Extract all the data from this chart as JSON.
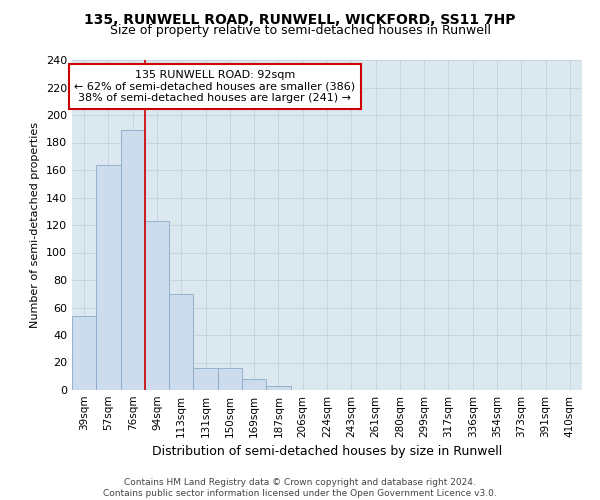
{
  "title": "135, RUNWELL ROAD, RUNWELL, WICKFORD, SS11 7HP",
  "subtitle": "Size of property relative to semi-detached houses in Runwell",
  "xlabel": "Distribution of semi-detached houses by size in Runwell",
  "ylabel": "Number of semi-detached properties",
  "categories": [
    "39sqm",
    "57sqm",
    "76sqm",
    "94sqm",
    "113sqm",
    "131sqm",
    "150sqm",
    "169sqm",
    "187sqm",
    "206sqm",
    "224sqm",
    "243sqm",
    "261sqm",
    "280sqm",
    "299sqm",
    "317sqm",
    "336sqm",
    "354sqm",
    "373sqm",
    "391sqm",
    "410sqm"
  ],
  "values": [
    54,
    164,
    189,
    123,
    70,
    16,
    16,
    8,
    3,
    0,
    0,
    0,
    0,
    0,
    0,
    0,
    0,
    0,
    0,
    0,
    0
  ],
  "bar_color": "#ccdcec",
  "bar_edge_color": "#8aaac8",
  "vline_x": 2.5,
  "annotation_title": "135 RUNWELL ROAD: 92sqm",
  "annotation_line1": "← 62% of semi-detached houses are smaller (386)",
  "annotation_line2": "38% of semi-detached houses are larger (241) →",
  "annotation_box_color": "#ffffff",
  "annotation_box_edge": "#cc0000",
  "vline_color": "#cc0000",
  "grid_color": "#c8d4e0",
  "background_color": "#dce8f0",
  "ylim": [
    0,
    240
  ],
  "yticks": [
    0,
    20,
    40,
    60,
    80,
    100,
    120,
    140,
    160,
    180,
    200,
    220,
    240
  ],
  "footer1": "Contains HM Land Registry data © Crown copyright and database right 2024.",
  "footer2": "Contains public sector information licensed under the Open Government Licence v3.0."
}
